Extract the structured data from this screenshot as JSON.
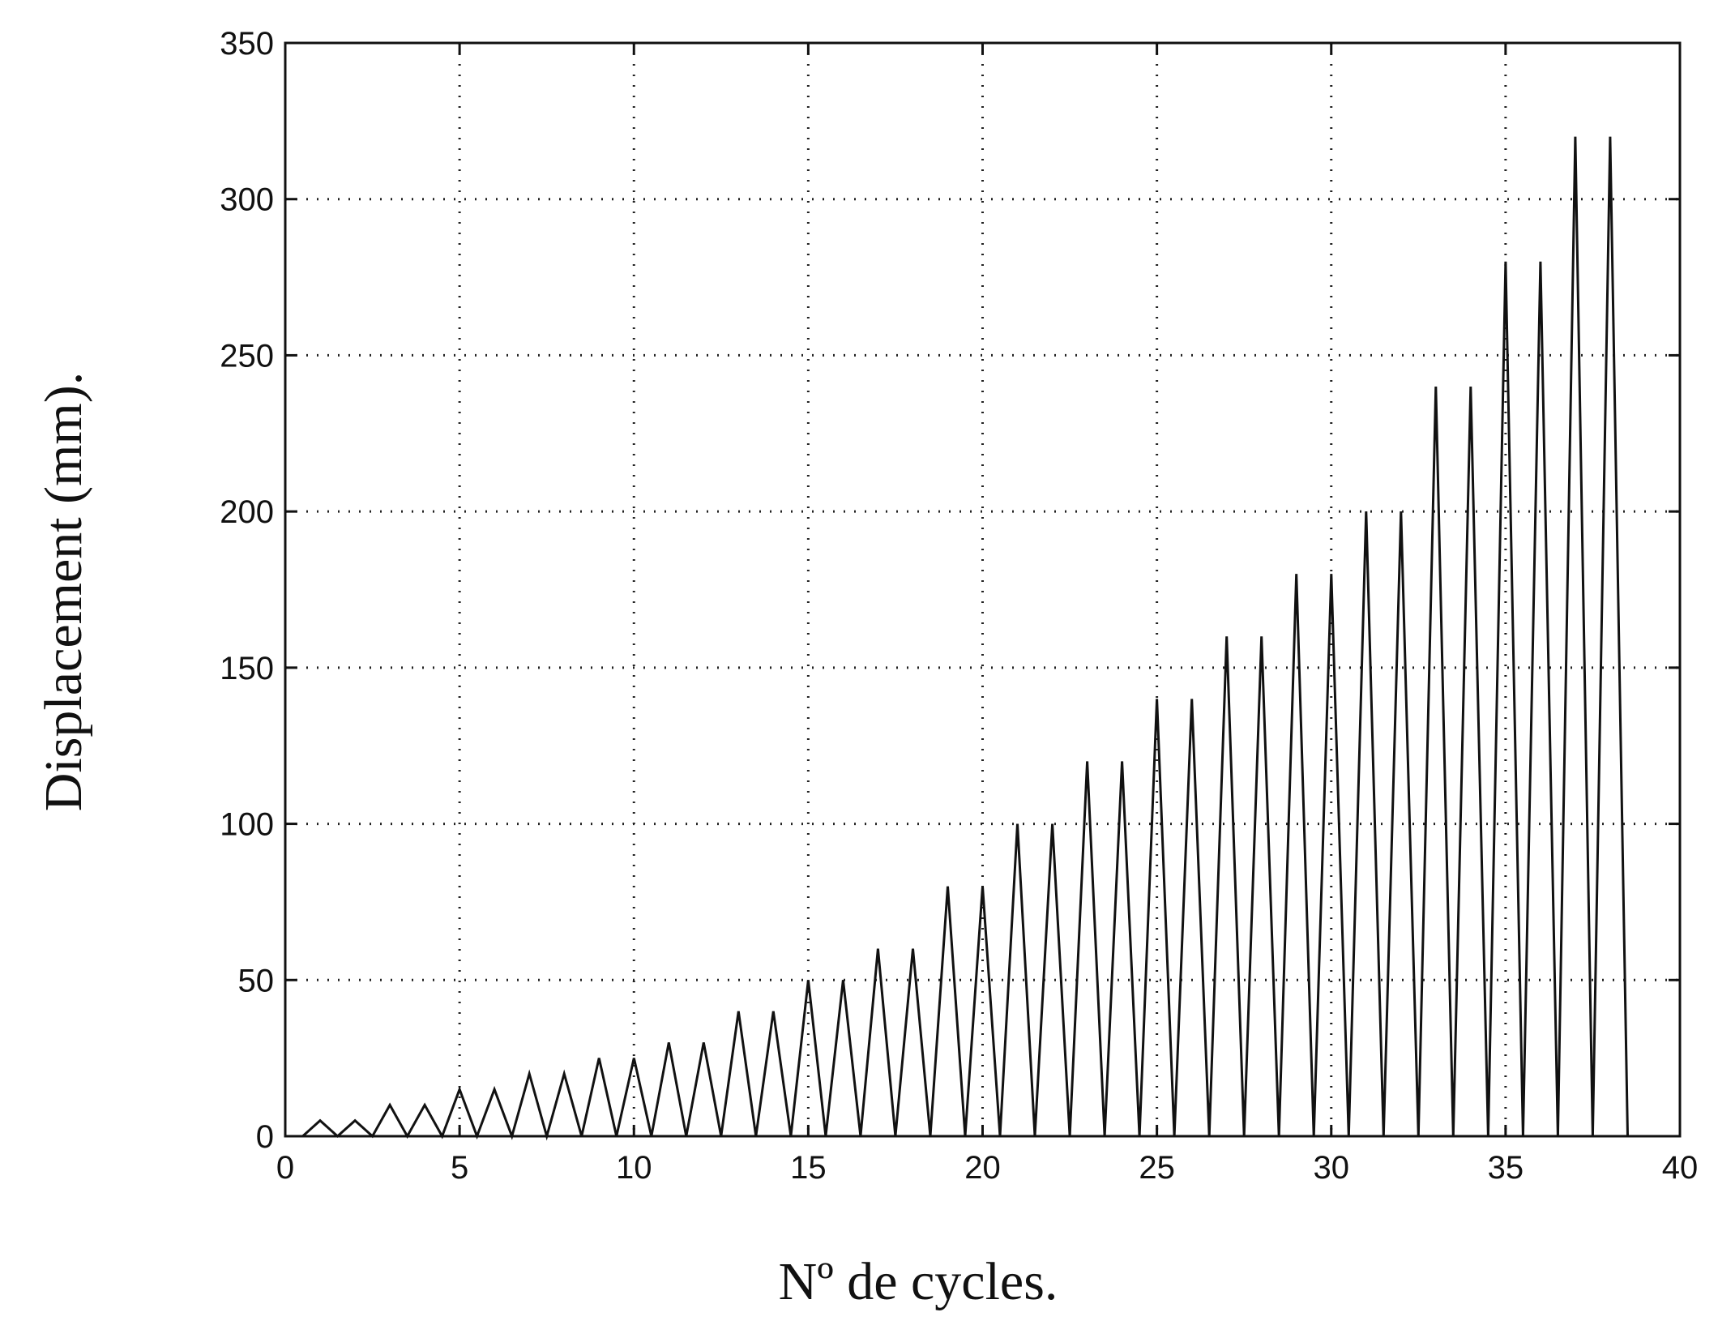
{
  "chart_data": {
    "type": "line",
    "xlabel": "Nº de cycles.",
    "ylabel": "Displacement (mm).",
    "xlim": [
      0,
      40
    ],
    "ylim": [
      0,
      350
    ],
    "xticks": [
      0,
      5,
      10,
      15,
      20,
      25,
      30,
      35,
      40
    ],
    "yticks": [
      0,
      50,
      100,
      150,
      200,
      250,
      300,
      350
    ],
    "xtick_labels": [
      "0",
      "5",
      "10",
      "15",
      "20",
      "25",
      "30",
      "35",
      "40"
    ],
    "ytick_labels": [
      "0",
      "50",
      "100",
      "150",
      "200",
      "250",
      "300",
      "350"
    ],
    "grid": true,
    "series": [
      {
        "x": [
          0.5,
          1,
          1.5,
          2,
          2.5,
          3,
          3.5,
          4,
          4.5,
          5,
          5.5,
          6,
          6.5,
          7,
          7.5,
          8,
          8.5,
          9,
          9.5,
          10,
          10.5,
          11,
          11.5,
          12,
          12.5,
          13,
          13.5,
          14,
          14.5,
          15,
          15.5,
          16,
          16.5,
          17,
          17.5,
          18,
          18.5,
          19,
          19.5,
          20,
          20.5,
          21,
          21.5,
          22,
          22.5,
          23,
          23.5,
          24,
          24.5,
          25,
          25.5,
          26,
          26.5,
          27,
          27.5,
          28,
          28.5,
          29,
          29.5,
          30,
          30.5,
          31,
          31.5,
          32,
          32.5,
          33,
          33.5,
          34,
          34.5,
          35,
          35.5,
          36,
          36.5,
          37,
          37.5,
          38,
          38.5
        ],
        "y": [
          0,
          5,
          0,
          5,
          0,
          10,
          0,
          10,
          0,
          15,
          0,
          15,
          0,
          20,
          0,
          20,
          0,
          25,
          0,
          25,
          0,
          30,
          0,
          30,
          0,
          40,
          0,
          40,
          0,
          50,
          0,
          50,
          0,
          60,
          0,
          60,
          0,
          80,
          0,
          80,
          0,
          100,
          0,
          100,
          0,
          120,
          0,
          120,
          0,
          140,
          0,
          140,
          0,
          160,
          0,
          160,
          0,
          180,
          0,
          180,
          0,
          200,
          0,
          200,
          0,
          240,
          0,
          240,
          0,
          280,
          0,
          280,
          0,
          320,
          0,
          320,
          0
        ]
      }
    ]
  }
}
